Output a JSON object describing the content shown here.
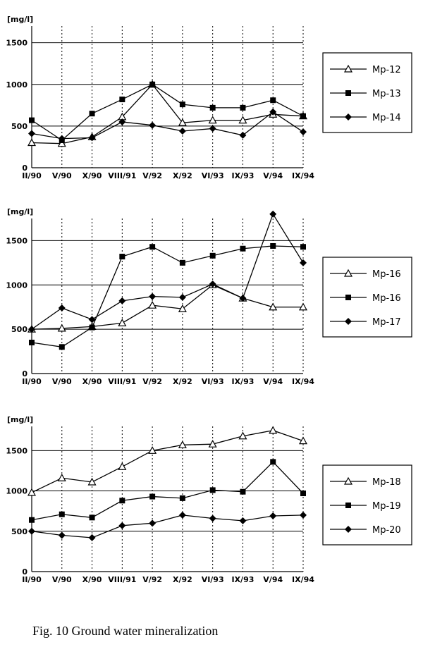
{
  "chart_data": [
    {
      "type": "line",
      "ylabel": "[mg/l]",
      "ylim": [
        0,
        1700
      ],
      "yticks": [
        0,
        500,
        1000,
        1500
      ],
      "categories": [
        "II/90",
        "V/90",
        "X/90",
        "VIII/91",
        "V/92",
        "X/92",
        "VI/93",
        "IX/93",
        "V/94",
        "IX/94"
      ],
      "series": [
        {
          "name": "Mp-12",
          "marker": "triangle-open",
          "values": [
            300,
            290,
            370,
            610,
            1000,
            540,
            570,
            570,
            640,
            620
          ]
        },
        {
          "name": "Mp-13",
          "marker": "square-filled",
          "values": [
            570,
            330,
            650,
            820,
            1000,
            760,
            720,
            720,
            810,
            620
          ]
        },
        {
          "name": "Mp-14",
          "marker": "diamond-filled",
          "values": [
            410,
            350,
            360,
            550,
            510,
            440,
            470,
            390,
            670,
            430
          ]
        }
      ],
      "legend": "right"
    },
    {
      "type": "line",
      "ylabel": "[mg/l]",
      "ylim": [
        0,
        1750
      ],
      "yticks": [
        0,
        500,
        1000,
        1500
      ],
      "categories": [
        "II/90",
        "V/90",
        "X/90",
        "VIII/91",
        "V/92",
        "X/92",
        "VI/93",
        "IX/93",
        "V/94",
        "IX/94"
      ],
      "series": [
        {
          "name": "Mp-16",
          "marker": "triangle-open",
          "values": [
            500,
            510,
            530,
            570,
            770,
            730,
            1000,
            850,
            750,
            750
          ]
        },
        {
          "name": "Mp-16",
          "marker": "square-filled",
          "values": [
            350,
            300,
            520,
            1320,
            1430,
            1250,
            1330,
            1410,
            1440,
            1430
          ]
        },
        {
          "name": "Mp-17",
          "marker": "diamond-filled",
          "values": [
            500,
            740,
            610,
            820,
            870,
            860,
            1010,
            850,
            1800,
            1250
          ]
        }
      ],
      "legend": "right"
    },
    {
      "type": "line",
      "ylabel": "[mg/l]",
      "ylim": [
        0,
        1800
      ],
      "yticks": [
        0,
        500,
        1000,
        1500
      ],
      "categories": [
        "II/90",
        "V/90",
        "X/90",
        "VIII/91",
        "V/92",
        "X/92",
        "VI/93",
        "IX/93",
        "V/94",
        "IX/94"
      ],
      "series": [
        {
          "name": "Mp-18",
          "marker": "triangle-open",
          "values": [
            980,
            1160,
            1110,
            1300,
            1500,
            1570,
            1580,
            1680,
            1750,
            1620
          ]
        },
        {
          "name": "Mp-19",
          "marker": "square-filled",
          "values": [
            640,
            710,
            670,
            880,
            930,
            910,
            1010,
            990,
            1360,
            970
          ]
        },
        {
          "name": "Mp-20",
          "marker": "diamond-filled",
          "values": [
            500,
            450,
            420,
            570,
            600,
            700,
            660,
            630,
            690,
            700
          ]
        }
      ],
      "legend": "right"
    }
  ],
  "caption": "Fig. 10 Ground water mineralization"
}
